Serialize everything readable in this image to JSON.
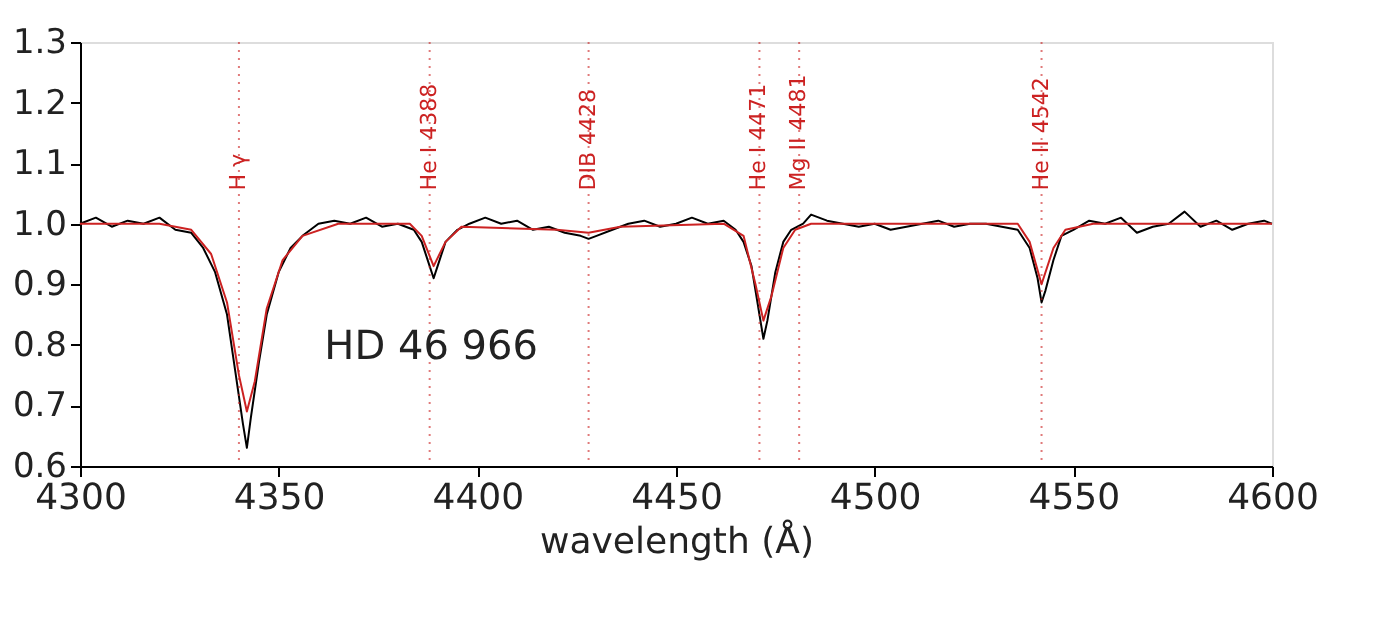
{
  "chart_data": {
    "type": "line",
    "xlabel": "wavelength (Å)",
    "xlim": [
      4300,
      4600
    ],
    "xticks": [
      4300,
      4350,
      4400,
      4450,
      4500,
      4550,
      4600
    ],
    "ylim": [
      0.6,
      1.3
    ],
    "yticks": [
      0.6,
      0.7,
      0.8,
      0.9,
      {
        "value": 1.0,
        "label": "1.0"
      },
      1.1,
      1.2,
      1.3
    ],
    "grid": false,
    "line_style": "solid",
    "marker": "none",
    "annotations": [
      "HD 46 966"
    ],
    "series": [
      {
        "color": "#000000",
        "x": [
          4300,
          4304,
          4308,
          4312,
          4316,
          4320,
          4324,
          4328,
          4331,
          4334,
          4337,
          4339,
          4341,
          4342,
          4343,
          4345,
          4347,
          4350,
          4353,
          4356,
          4360,
          4364,
          4368,
          4372,
          4376,
          4380,
          4384,
          4386,
          4388,
          4389,
          4390,
          4392,
          4395,
          4398,
          4402,
          4406,
          4410,
          4414,
          4418,
          4422,
          4426,
          4428,
          4430,
          4434,
          4438,
          4442,
          4446,
          4450,
          4454,
          4458,
          4462,
          4465,
          4467,
          4469,
          4471,
          4472,
          4473,
          4475,
          4477,
          4479,
          4482,
          4484,
          4488,
          4492,
          4496,
          4500,
          4504,
          4508,
          4512,
          4516,
          4520,
          4524,
          4528,
          4532,
          4536,
          4539,
          4541,
          4542,
          4543,
          4545,
          4547,
          4550,
          4554,
          4558,
          4562,
          4566,
          4570,
          4574,
          4578,
          4582,
          4586,
          4590,
          4594,
          4598,
          4600
        ],
        "values": [
          1.0,
          1.01,
          0.995,
          1.005,
          1.0,
          1.01,
          0.99,
          0.985,
          0.96,
          0.92,
          0.85,
          0.76,
          0.67,
          0.63,
          0.68,
          0.77,
          0.85,
          0.92,
          0.96,
          0.98,
          1.0,
          1.005,
          1.0,
          1.01,
          0.995,
          1.0,
          0.99,
          0.97,
          0.93,
          0.91,
          0.93,
          0.97,
          0.99,
          1.0,
          1.01,
          1.0,
          1.005,
          0.99,
          0.995,
          0.985,
          0.98,
          0.975,
          0.98,
          0.99,
          1.0,
          1.005,
          0.995,
          1.0,
          1.01,
          1.0,
          1.005,
          0.99,
          0.97,
          0.93,
          0.85,
          0.81,
          0.84,
          0.92,
          0.97,
          0.99,
          1.0,
          1.015,
          1.005,
          1.0,
          0.995,
          1.0,
          0.99,
          0.995,
          1.0,
          1.005,
          0.995,
          1.0,
          1.0,
          0.995,
          0.99,
          0.96,
          0.91,
          0.87,
          0.89,
          0.94,
          0.98,
          0.99,
          1.005,
          1.0,
          1.01,
          0.985,
          0.995,
          1.0,
          1.02,
          0.995,
          1.005,
          0.99,
          1.0,
          1.005,
          1.0
        ]
      },
      {
        "color": "#cc2222",
        "x": [
          4300,
          4320,
          4328,
          4333,
          4337,
          4340,
          4342,
          4344,
          4347,
          4351,
          4356,
          4365,
          4383,
          4386,
          4389,
          4392,
          4396,
          4420,
          4428,
          4436,
          4462,
          4467,
          4470,
          4472,
          4474,
          4477,
          4480,
          4484,
          4536,
          4539,
          4542,
          4545,
          4548,
          4555,
          4600
        ],
        "values": [
          1.0,
          1.0,
          0.99,
          0.95,
          0.87,
          0.75,
          0.69,
          0.74,
          0.86,
          0.94,
          0.98,
          1.0,
          1.0,
          0.98,
          0.93,
          0.97,
          0.995,
          0.99,
          0.985,
          0.995,
          1.0,
          0.98,
          0.9,
          0.84,
          0.88,
          0.96,
          0.99,
          1.0,
          1.0,
          0.97,
          0.9,
          0.96,
          0.99,
          1.0,
          1.0
        ]
      }
    ],
    "ref_lines": [
      {
        "axis": "x",
        "value": 4340,
        "label": "H γ",
        "color": "#cc2222",
        "line_style": "dotted"
      },
      {
        "axis": "x",
        "value": 4388,
        "label": "He I 4388",
        "color": "#cc2222",
        "line_style": "dotted"
      },
      {
        "axis": "x",
        "value": 4428,
        "label": "DIB 4428",
        "color": "#cc2222",
        "line_style": "dotted"
      },
      {
        "axis": "x",
        "value": 4471,
        "label": "He I 4471",
        "color": "#cc2222",
        "line_style": "dotted"
      },
      {
        "axis": "x",
        "value": 4481,
        "label": "Mg II 4481",
        "color": "#cc2222",
        "line_style": "dotted"
      },
      {
        "axis": "x",
        "value": 4542,
        "label": "He II 4542",
        "color": "#cc2222",
        "line_style": "dotted"
      }
    ]
  }
}
